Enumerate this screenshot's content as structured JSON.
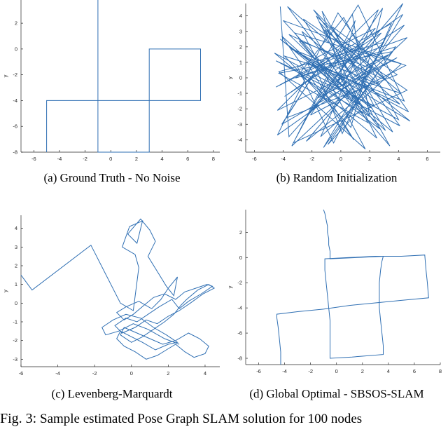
{
  "figure_caption": {
    "label": "Fig. 3:",
    "text": "Sample estimated Pose Graph SLAM solution for 100 nodes"
  },
  "chart_data": [
    {
      "type": "line",
      "caption": "(a) Ground Truth - No Noise",
      "ylabel": "y",
      "xlim": [
        -7,
        8.5
      ],
      "ylim": [
        -8,
        3.8
      ],
      "xticks": [
        -6,
        -4,
        -2,
        0,
        2,
        4,
        6,
        8
      ],
      "yticks": [
        -8,
        -6,
        -4,
        -2,
        0,
        2
      ],
      "x": [
        -5,
        -5,
        -5,
        -5,
        -5,
        -5,
        7,
        7,
        7,
        7,
        7,
        3,
        3,
        3,
        3,
        3,
        3,
        3,
        3,
        3,
        -1,
        -1,
        -1,
        -1,
        -1,
        -1,
        -1,
        -1,
        -1,
        -1,
        -1,
        -1,
        -1,
        -1,
        -1
      ],
      "y": [
        -8,
        -7,
        -6,
        -5,
        -4,
        -4,
        -4,
        -3,
        -2,
        -1,
        0,
        0,
        -1,
        -2,
        -3,
        -4,
        -5,
        -6,
        -7,
        -8,
        -8,
        -7,
        -6,
        -5,
        -4,
        -3,
        -2,
        -1,
        0,
        0,
        1,
        2,
        3,
        3.8,
        3.8
      ]
    },
    {
      "type": "line",
      "caption": "(b) Random Initialization",
      "ylabel": "y",
      "xlim": [
        -6.6,
        6.9
      ],
      "ylim": [
        -4.8,
        4.8
      ],
      "xticks": [
        -6,
        -4,
        -2,
        0,
        2,
        4,
        6
      ],
      "yticks": [
        -4,
        -3,
        -2,
        -1,
        0,
        1,
        2,
        3,
        4
      ],
      "x": [
        -4.2,
        -3.6,
        2.8,
        -3.9,
        4.3,
        -1.2,
        3.6,
        -4.3,
        1.9,
        -2.6,
        4.6,
        -3.3,
        0.4,
        -1.9,
        4.1,
        -4.5,
        2.3,
        -0.6,
        3.9,
        -3.8,
        1.2,
        4.4,
        -2.3,
        0.9,
        -4.1,
        3.1,
        -1.5,
        2.6,
        -3.5,
        4.7,
        -0.2,
        -4.4,
        2.1,
        -2.9,
        3.4,
        -1.1,
        4.2,
        -3.9,
        0.7,
        2.9,
        -2.1,
        4.5,
        -4.0,
        1.5,
        -0.9,
        3.8,
        -3.1,
        0.2,
        4.0,
        -4.6,
        2.5,
        -1.7,
        3.2,
        -3.6,
        1.1,
        -2.4,
        4.4,
        -0.4,
        2.2,
        -4.2,
        3.6,
        -1.3,
        0.5,
        -3.3,
        4.8,
        -2.7,
        1.7,
        -4.3,
        3.0,
        -0.7,
        2.7,
        -3.7,
        4.1,
        -1.9,
        0.1,
        3.5,
        -4.5,
        1.3,
        -2.2,
        4.3,
        -0.5,
        -3.0,
        2.4,
        -1.6,
        3.9,
        -4.1,
        0.8,
        2.0,
        -2.8,
        4.6,
        -3.4,
        1.0,
        -0.3,
        3.3,
        -4.4,
        2.6,
        -1.4,
        4.2,
        -3.2,
        0.6
      ],
      "y": [
        4.6,
        -3.8,
        2.9,
        -1.2,
        4.1,
        -4.5,
        1.7,
        0.3,
        -2.9,
        3.8,
        -0.8,
        -4.2,
        2.2,
        4.4,
        -3.1,
        1.1,
        -1.8,
        3.3,
        0.2,
        -2.6,
        4.7,
        -1.5,
        0.9,
        -4.0,
        2.7,
        -3.4,
        3.6,
        -0.4,
        1.9,
        -2.2,
        4.2,
        -3.7,
        0.6,
        2.4,
        -4.4,
        3.1,
        -1.0,
        1.4,
        -3.2,
        4.5,
        -2.4,
        0.8,
        3.7,
        -1.9,
        -4.3,
        2.0,
        0.0,
        3.9,
        -2.7,
        1.6,
        -3.9,
        4.0,
        -0.2,
        2.8,
        -1.4,
        -4.1,
        3.4,
        0.5,
        -2.0,
        2.5,
        -3.5,
        4.3,
        -1.1,
        1.8,
        -2.8,
        3.0,
        -4.6,
        0.4,
        2.3,
        -0.9,
        -3.3,
        4.6,
        -1.7,
        1.0,
        -3.6,
        3.5,
        -0.6,
        2.1,
        -2.3,
        4.8,
        -4.2,
        0.7,
        3.2,
        -1.3,
        1.3,
        -3.0,
        4.1,
        -2.5,
        0.1,
        2.6,
        -4.4,
        3.7,
        -0.7,
        1.5,
        -2.1,
        4.4,
        -3.8,
        0.9,
        2.9,
        -1.6
      ]
    },
    {
      "type": "line",
      "caption": "(c) Levenberg-Marquardt",
      "ylabel": "y",
      "xlim": [
        -6,
        4.8
      ],
      "ylim": [
        -3.4,
        4.7
      ],
      "xticks": [
        -6,
        -4,
        -2,
        0,
        2,
        4
      ],
      "yticks": [
        -3,
        -2,
        -1,
        0,
        1,
        2,
        3,
        4
      ],
      "x": [
        -6.0,
        -5.4,
        -2.2,
        -0.6,
        0.1,
        0.4,
        0.2,
        -0.5,
        -0.1,
        0.6,
        0.3,
        -0.2,
        0.5,
        1.0,
        1.3,
        0.9,
        1.4,
        1.9,
        2.3,
        2.5,
        2.0,
        1.6,
        1.1,
        0.4,
        -0.3,
        -0.8,
        -0.4,
        0.1,
        0.7,
        1.2,
        1.8,
        2.4,
        2.9,
        3.5,
        4.1,
        4.4,
        3.8,
        3.1,
        2.6,
        2.2,
        1.5,
        0.9,
        0.3,
        -0.3,
        -0.9,
        -0.5,
        0.2,
        0.8,
        1.4,
        2.0,
        2.6,
        3.2,
        3.9,
        4.5,
        4.2,
        3.6,
        3.0,
        2.7,
        2.3,
        1.8,
        1.2,
        0.6,
        0.0,
        -0.6,
        -0.4,
        0.3,
        1.0,
        1.7,
        2.4,
        3.1,
        3.7,
        4.2,
        4.0,
        3.4,
        2.9,
        2.4,
        1.9,
        1.4,
        0.8,
        0.2,
        -0.4,
        -0.8,
        -0.6,
        0.0,
        0.6,
        1.3,
        2.0,
        2.5,
        1.9,
        1.2,
        0.5,
        -0.3,
        -1.0,
        -1.6,
        -1.4,
        -0.7,
        0.1,
        0.9,
        1.8,
        2.6
      ],
      "y": [
        1.5,
        0.7,
        3.1,
        0.0,
        -0.4,
        1.9,
        2.6,
        3.0,
        4.1,
        4.4,
        3.2,
        3.7,
        4.5,
        3.9,
        3.3,
        2.5,
        1.7,
        0.9,
        0.4,
        1.4,
        0.8,
        0.2,
        -0.3,
        0.1,
        -0.2,
        -0.5,
        -0.9,
        -0.6,
        -0.1,
        0.3,
        0.5,
        0.2,
        0.6,
        0.8,
        1.0,
        0.9,
        0.5,
        0.1,
        -0.3,
        0.2,
        -0.2,
        -0.6,
        -1.0,
        -0.8,
        -1.2,
        -1.6,
        -1.3,
        -0.9,
        -1.1,
        -0.7,
        -0.4,
        0.0,
        0.5,
        0.8,
        1.0,
        0.7,
        0.2,
        -0.1,
        -0.6,
        -1.0,
        -1.4,
        -1.8,
        -2.1,
        -1.7,
        -1.3,
        -1.6,
        -1.9,
        -2.2,
        -2.0,
        -1.6,
        -1.9,
        -2.3,
        -2.7,
        -2.9,
        -2.6,
        -2.2,
        -2.5,
        -2.8,
        -3.0,
        -2.6,
        -2.3,
        -1.9,
        -1.5,
        -1.8,
        -2.1,
        -2.5,
        -2.2,
        -2.1,
        -1.7,
        -1.3,
        -0.8,
        -0.6,
        -0.9,
        -1.3,
        -1.7,
        -1.5,
        -1.1,
        -1.4,
        -1.9,
        -2.2
      ]
    },
    {
      "type": "line",
      "caption": "(d) Global Optimal - SBSOS-SLAM",
      "ylabel": "y",
      "xlim": [
        -7,
        8
      ],
      "ylim": [
        -8.5,
        3.8
      ],
      "xticks": [
        -6,
        -4,
        -2,
        0,
        2,
        4,
        6,
        8
      ],
      "yticks": [
        -8,
        -6,
        -4,
        -2,
        0,
        2
      ],
      "x": [
        -4.3,
        -4.3,
        -4.4,
        -4.5,
        -4.6,
        -4.6,
        -3.0,
        -1.0,
        1.0,
        3.0,
        5.0,
        7.1,
        7.0,
        6.9,
        6.8,
        6.8,
        5.0,
        3.0,
        1.0,
        -0.9,
        -0.9,
        -0.8,
        -0.7,
        -0.6,
        -0.5,
        -0.5,
        1.2,
        3.6,
        3.6,
        3.5,
        3.4,
        3.3,
        3.3,
        3.3,
        3.4,
        3.5,
        3.6,
        3.7,
        3.7,
        1.6,
        -0.5,
        -0.5,
        -0.5,
        -0.6,
        -0.6,
        -0.7,
        -0.7,
        -0.8,
        -0.9,
        -1.0,
        -1.0
      ],
      "y": [
        -8.5,
        -7.5,
        -6.5,
        -5.5,
        -4.8,
        -4.5,
        -4.3,
        -4.1,
        -3.8,
        -3.6,
        -3.4,
        -3.2,
        -2.0,
        -1.0,
        0.2,
        0.2,
        0.1,
        0.1,
        0.0,
        -0.1,
        -1.0,
        -2.0,
        -3.0,
        -4.0,
        -5.0,
        -8.0,
        -7.9,
        -7.7,
        -7.0,
        -6.0,
        -5.0,
        -4.0,
        -3.0,
        -2.0,
        -1.0,
        -0.3,
        0.1,
        0.1,
        0.1,
        0.0,
        -0.1,
        -0.1,
        0.5,
        1.0,
        1.5,
        2.0,
        2.5,
        3.0,
        3.5,
        3.8,
        3.8
      ]
    }
  ]
}
